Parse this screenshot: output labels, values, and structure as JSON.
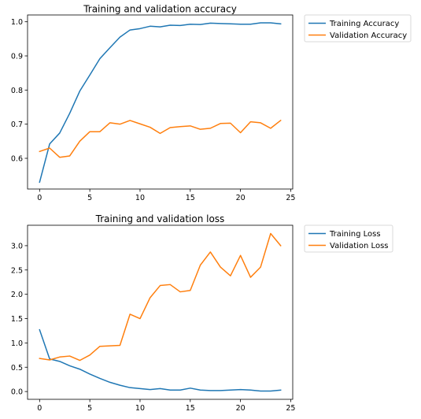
{
  "chart_data": [
    {
      "type": "line",
      "title": "Training and validation accuracy",
      "xlabel": "",
      "ylabel": "",
      "xlim": [
        -1.2,
        25.2
      ],
      "ylim": [
        0.51,
        1.02
      ],
      "xticks": [
        0,
        5,
        10,
        15,
        20,
        25
      ],
      "yticks": [
        0.6,
        0.7,
        0.8,
        0.9,
        1.0
      ],
      "xtick_labels": [
        "0",
        "5",
        "10",
        "15",
        "20",
        "25"
      ],
      "ytick_labels": [
        "0.6",
        "0.7",
        "0.8",
        "0.9",
        "1.0"
      ],
      "grid": false,
      "legend_position": "outside-top-right",
      "x": [
        0,
        1,
        2,
        3,
        4,
        5,
        6,
        7,
        8,
        9,
        10,
        11,
        12,
        13,
        14,
        15,
        16,
        17,
        18,
        19,
        20,
        21,
        22,
        23,
        24
      ],
      "series": [
        {
          "name": "Training Accuracy",
          "color": "#1f77b4",
          "values": [
            0.53,
            0.642,
            0.674,
            0.732,
            0.797,
            0.844,
            0.892,
            0.924,
            0.955,
            0.976,
            0.98,
            0.987,
            0.985,
            0.99,
            0.989,
            0.993,
            0.992,
            0.996,
            0.995,
            0.994,
            0.993,
            0.993,
            0.997,
            0.997,
            0.994
          ]
        },
        {
          "name": "Validation Accuracy",
          "color": "#ff7f0e",
          "values": [
            0.62,
            0.63,
            0.603,
            0.607,
            0.65,
            0.678,
            0.678,
            0.704,
            0.7,
            0.711,
            0.701,
            0.691,
            0.673,
            0.69,
            0.693,
            0.695,
            0.685,
            0.688,
            0.702,
            0.703,
            0.675,
            0.707,
            0.704,
            0.688,
            0.711
          ]
        }
      ]
    },
    {
      "type": "line",
      "title": "Training and validation loss",
      "xlabel": "",
      "ylabel": "",
      "xlim": [
        -1.2,
        25.2
      ],
      "ylim": [
        -0.16,
        3.42
      ],
      "xticks": [
        0,
        5,
        10,
        15,
        20,
        25
      ],
      "yticks": [
        0.0,
        0.5,
        1.0,
        1.5,
        2.0,
        2.5,
        3.0
      ],
      "xtick_labels": [
        "0",
        "5",
        "10",
        "15",
        "20",
        "25"
      ],
      "ytick_labels": [
        "0.0",
        "0.5",
        "1.0",
        "1.5",
        "2.0",
        "2.5",
        "3.0"
      ],
      "grid": false,
      "legend_position": "outside-top-right",
      "x": [
        0,
        1,
        2,
        3,
        4,
        5,
        6,
        7,
        8,
        9,
        10,
        11,
        12,
        13,
        14,
        15,
        16,
        17,
        18,
        19,
        20,
        21,
        22,
        23,
        24
      ],
      "series": [
        {
          "name": "Training Loss",
          "color": "#1f77b4",
          "values": [
            1.27,
            0.67,
            0.62,
            0.53,
            0.46,
            0.36,
            0.27,
            0.19,
            0.13,
            0.08,
            0.06,
            0.04,
            0.06,
            0.03,
            0.03,
            0.07,
            0.03,
            0.02,
            0.02,
            0.03,
            0.04,
            0.03,
            0.01,
            0.01,
            0.03
          ]
        },
        {
          "name": "Validation Loss",
          "color": "#ff7f0e",
          "values": [
            0.68,
            0.65,
            0.71,
            0.73,
            0.64,
            0.75,
            0.93,
            0.94,
            0.95,
            1.59,
            1.5,
            1.93,
            2.18,
            2.2,
            2.05,
            2.08,
            2.6,
            2.87,
            2.56,
            2.38,
            2.8,
            2.35,
            2.56,
            3.25,
            3.0
          ]
        }
      ]
    }
  ]
}
